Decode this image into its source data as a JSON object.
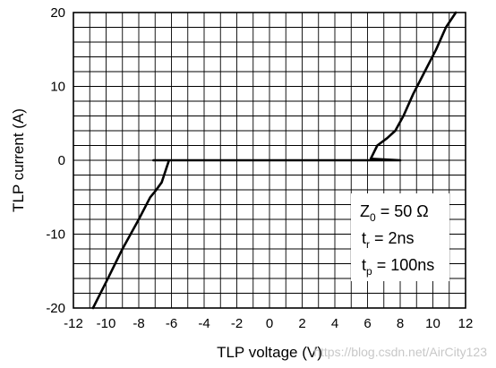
{
  "chart_data": {
    "type": "line",
    "title": "",
    "xlabel": "TLP voltage (V)",
    "ylabel": "TLP current (A)",
    "xlim": [
      -12,
      12
    ],
    "ylim": [
      -20,
      20
    ],
    "xticks": [
      -12,
      -10,
      -8,
      -6,
      -4,
      -2,
      0,
      2,
      4,
      6,
      8,
      10,
      12
    ],
    "yticks": [
      -20,
      -10,
      0,
      10,
      20
    ],
    "grid": {
      "x_major_step": 2,
      "x_minor_step": 1,
      "y_major_step": 10,
      "y_minor_step": 2
    },
    "series": [
      {
        "color": "#000000",
        "x": [
          -10.8,
          -10.0,
          -9.0,
          -8.0,
          -7.3,
          -7.0,
          -6.6,
          -6.3,
          -6.15,
          -6.5,
          -7.1,
          -6.5,
          -4,
          -2,
          0,
          2,
          4,
          6,
          8,
          6.2,
          6.6,
          7.2,
          7.7,
          8.2,
          8.8,
          9.5,
          10.2,
          10.8,
          11.4
        ],
        "y": [
          -20,
          -16.5,
          -12,
          -8,
          -5,
          -4.2,
          -3,
          -1,
          0,
          0,
          0,
          0,
          0,
          0,
          0,
          0,
          0,
          0,
          0,
          0.2,
          2,
          3,
          4,
          6,
          9,
          12,
          15,
          18,
          20
        ]
      }
    ],
    "annotations": {
      "z0_main": "Z",
      "z0_sub": "0",
      "z0_value": " = 50 Ω",
      "tr_main": "t",
      "tr_sub": "r",
      "tr_value": " = 2ns",
      "tp_main": "t",
      "tp_sub": "p",
      "tp_value": " = 100ns"
    },
    "watermark": "https://blog.csdn.net/AirCity123",
    "colors": {
      "grid": "#000000",
      "line": "#000000",
      "background": "#ffffff"
    }
  }
}
